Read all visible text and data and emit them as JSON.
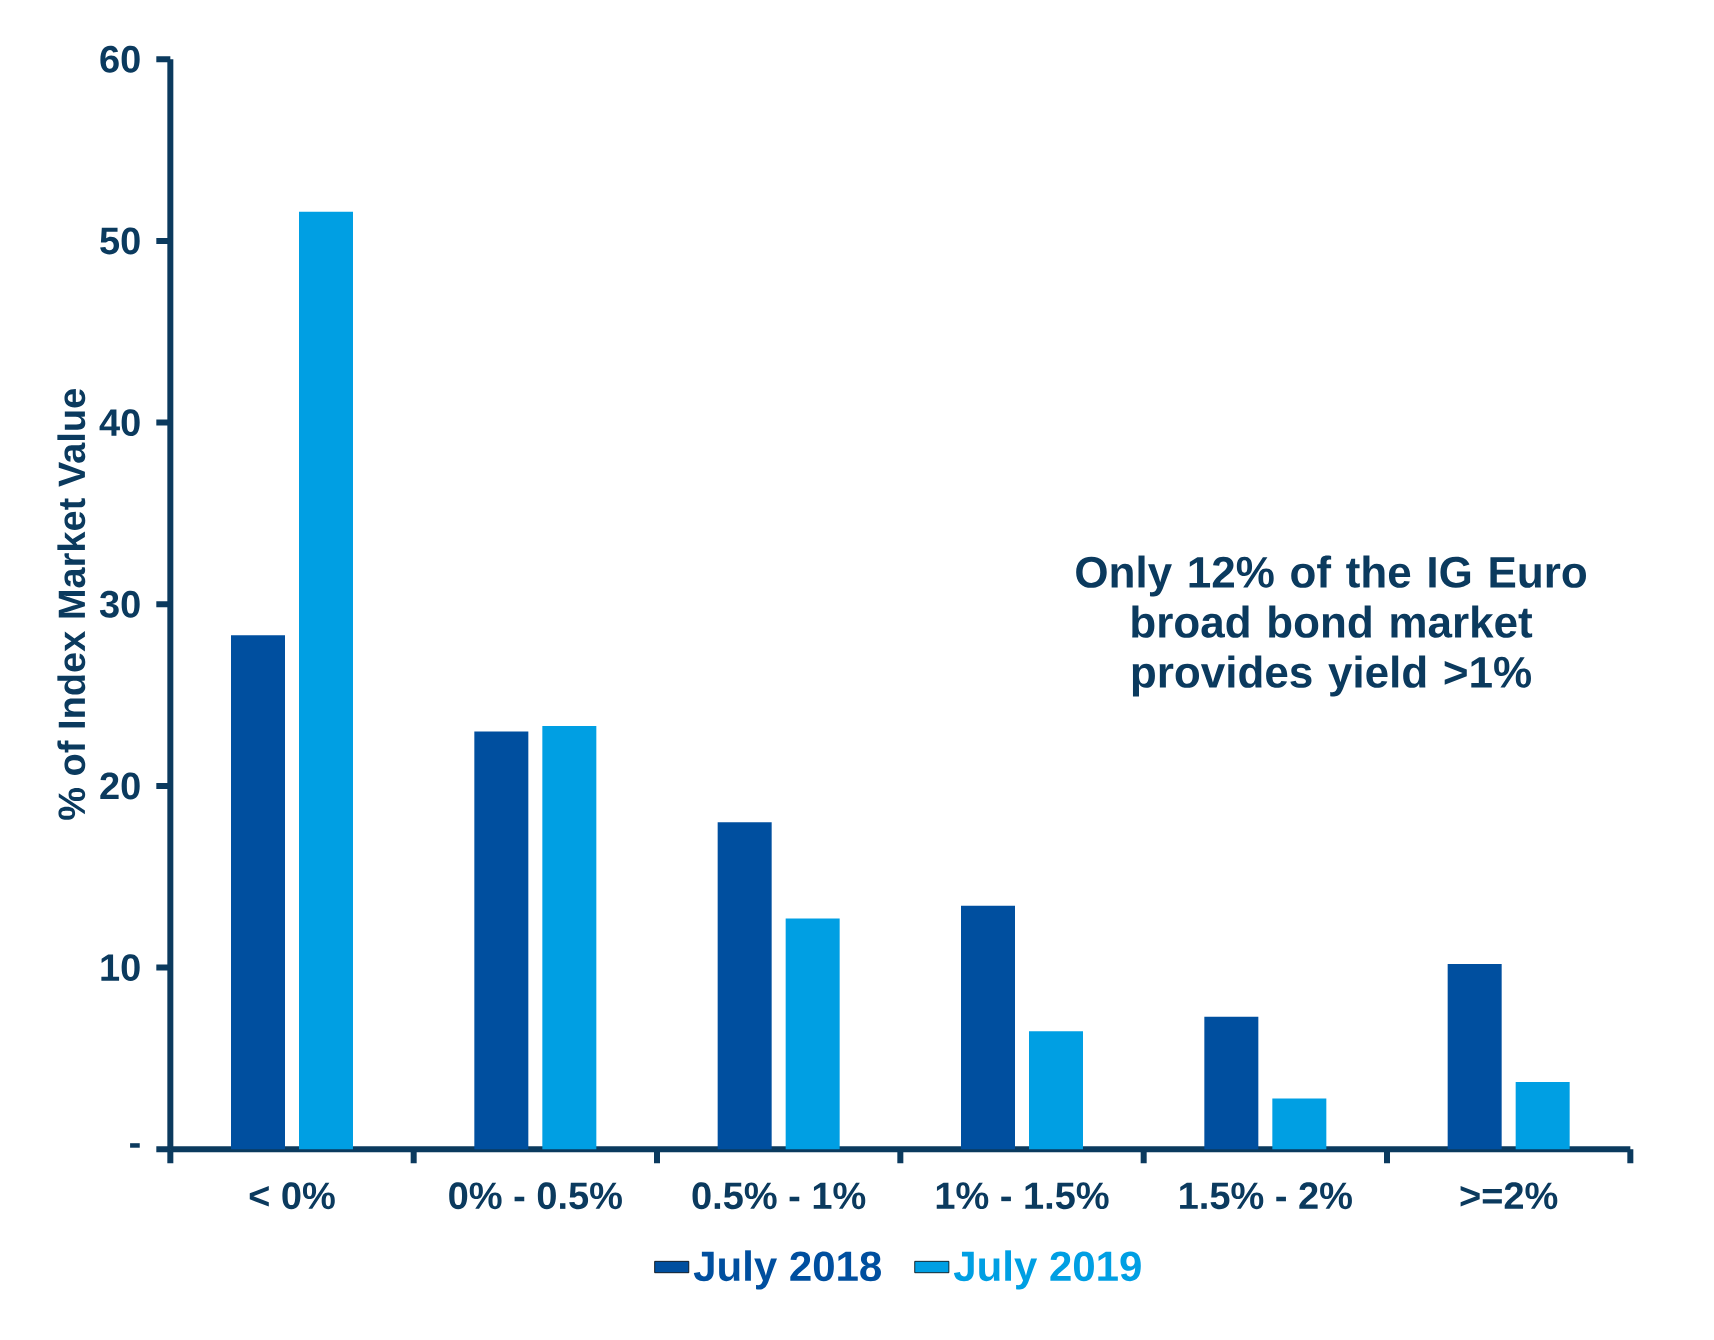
{
  "chart_data": {
    "type": "bar",
    "ylabel": "% of Index Market Value",
    "categories": [
      "< 0%",
      "0% - 0.5%",
      "0.5% - 1%",
      "1% - 1.5%",
      "1.5% - 2%",
      ">=2%"
    ],
    "series": [
      {
        "name": "July 2018",
        "color": "#004f9f",
        "values": [
          28.3,
          23.0,
          18.0,
          13.4,
          7.3,
          10.2
        ]
      },
      {
        "name": "July 2019",
        "color": "#009fe3",
        "values": [
          51.6,
          23.3,
          12.7,
          6.5,
          2.8,
          3.7
        ]
      }
    ],
    "ylim": [
      0,
      60
    ],
    "yticks": [
      {
        "value": 0,
        "label": "-"
      },
      10,
      20,
      30,
      40,
      50,
      60
    ],
    "annotations": [
      "Only 12% of the IG Euro broad bond market provides yield >1%"
    ],
    "grid": false,
    "legend": "bottom"
  }
}
